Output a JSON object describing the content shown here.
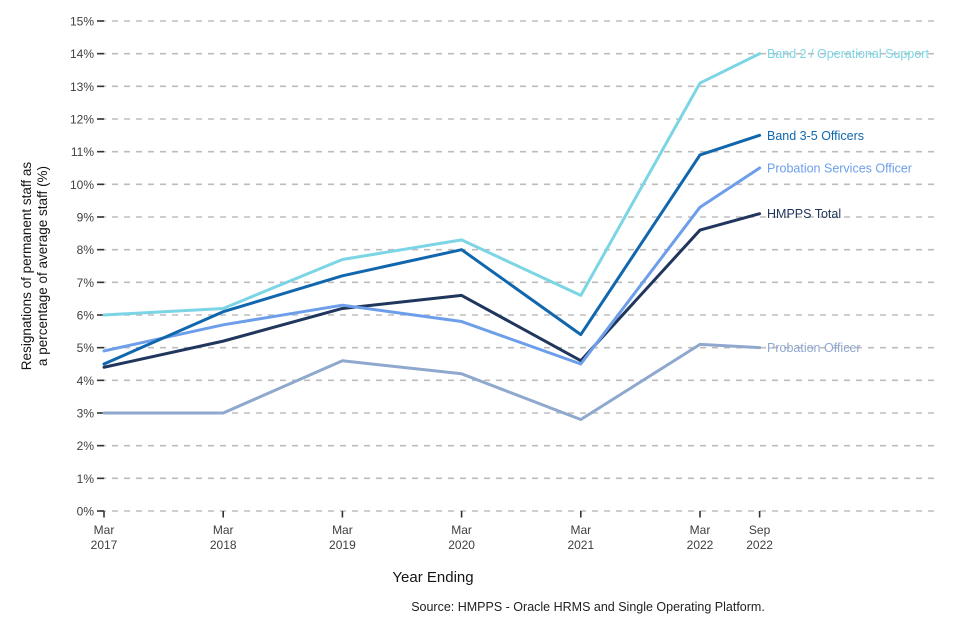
{
  "chart_data": {
    "type": "line",
    "title": "",
    "xlabel": "Year Ending",
    "ylabel": "Resignations of permanent staff as a percentage of average staff (%)",
    "ylabel_lines": [
      "Resignations of permanent staff as",
      "a percentage of average staff (%)"
    ],
    "source": "Source: HMPPS - Oracle HRMS and Single Operating Platform.",
    "categories": [
      "Mar 2017",
      "Mar 2018",
      "Mar 2019",
      "Mar 2020",
      "Mar 2021",
      "Mar 2022",
      "Sep 2022"
    ],
    "x_tick_labels": [
      [
        "Mar",
        "2017"
      ],
      [
        "Mar",
        "2018"
      ],
      [
        "Mar",
        "2019"
      ],
      [
        "Mar",
        "2020"
      ],
      [
        "Mar",
        "2021"
      ],
      [
        "Mar",
        "2022"
      ],
      [
        "Sep",
        "2022"
      ]
    ],
    "y_ticks": [
      "0%",
      "1%",
      "2%",
      "3%",
      "4%",
      "5%",
      "6%",
      "7%",
      "8%",
      "9%",
      "10%",
      "11%",
      "12%",
      "13%",
      "14%",
      "15%"
    ],
    "ylim": [
      0,
      15
    ],
    "grid": "horizontal-dashed",
    "gridline_color": "#bdbdbd",
    "legend_position": "right-end-labels",
    "series": [
      {
        "name": "Band 2 / Operational Support",
        "color": "#7BD5E5",
        "values": [
          6.0,
          6.2,
          7.7,
          8.3,
          6.6,
          13.1,
          14.0
        ]
      },
      {
        "name": "Band 3-5 Officers",
        "color": "#1167AE",
        "values": [
          4.5,
          6.1,
          7.2,
          8.0,
          5.4,
          10.9,
          11.5
        ]
      },
      {
        "name": "Probation Services Officer",
        "color": "#6D9EEA",
        "values": [
          4.9,
          5.7,
          6.3,
          5.8,
          4.5,
          9.3,
          10.5
        ]
      },
      {
        "name": "HMPPS Total",
        "color": "#20365C",
        "values": [
          4.4,
          5.2,
          6.2,
          6.6,
          4.6,
          8.6,
          9.1
        ]
      },
      {
        "name": "Probation Officer",
        "color": "#8FA8CE",
        "values": [
          3.0,
          3.0,
          4.6,
          4.2,
          2.8,
          5.1,
          5.0
        ]
      }
    ]
  }
}
